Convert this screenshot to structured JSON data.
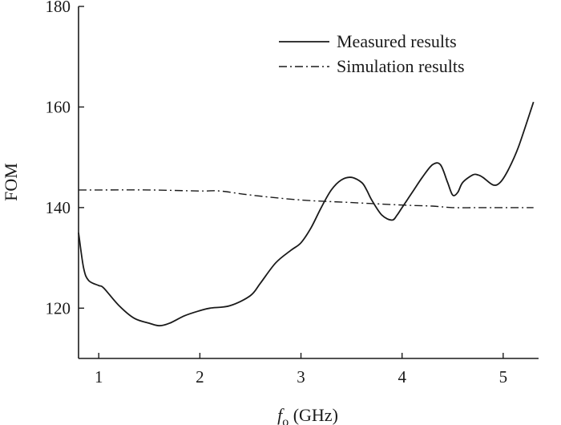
{
  "chart_data": {
    "type": "line",
    "xlabel": "f",
    "xlabel_subscript": "o",
    "xlabel_unit": "(GHz)",
    "ylabel": "FOM",
    "xlim": [
      0.8,
      5.35
    ],
    "ylim": [
      110,
      180
    ],
    "xticks": [
      1,
      2,
      3,
      4,
      5
    ],
    "yticks": [
      120,
      140,
      160,
      180
    ],
    "grid": false,
    "legend_position": "top-right",
    "series": [
      {
        "name": "Measured results",
        "style": "solid",
        "x": [
          0.8,
          0.85,
          0.9,
          1.0,
          1.05,
          1.2,
          1.35,
          1.5,
          1.6,
          1.7,
          1.85,
          2.0,
          2.1,
          2.3,
          2.5,
          2.6,
          2.75,
          2.9,
          3.0,
          3.1,
          3.2,
          3.3,
          3.4,
          3.5,
          3.6,
          3.65,
          3.7,
          3.8,
          3.9,
          3.95,
          4.0,
          4.1,
          4.2,
          4.3,
          4.38,
          4.45,
          4.5,
          4.55,
          4.6,
          4.7,
          4.75,
          4.8,
          4.9,
          4.97,
          5.05,
          5.15,
          5.3
        ],
        "y": [
          135,
          128,
          125.5,
          124.5,
          124,
          120.5,
          118,
          117,
          116.5,
          117,
          118.5,
          119.5,
          120,
          120.5,
          122.5,
          125,
          129,
          131.5,
          133,
          136,
          140,
          143.5,
          145.5,
          146,
          145,
          143.5,
          141.5,
          138.5,
          137.5,
          138.5,
          140,
          143,
          146,
          148.5,
          148.5,
          145,
          142.5,
          143,
          145,
          146.5,
          146.5,
          146,
          144.5,
          145,
          147.5,
          152,
          161
        ]
      },
      {
        "name": "Simulation results",
        "style": "dash-dot",
        "x": [
          0.8,
          1.0,
          1.5,
          2.0,
          2.2,
          2.5,
          3.0,
          3.5,
          4.0,
          4.3,
          4.5,
          4.8,
          5.0,
          5.3
        ],
        "y": [
          143.5,
          143.5,
          143.5,
          143.3,
          143.3,
          142.5,
          141.5,
          141,
          140.5,
          140.3,
          140,
          140,
          140,
          140
        ]
      }
    ]
  }
}
